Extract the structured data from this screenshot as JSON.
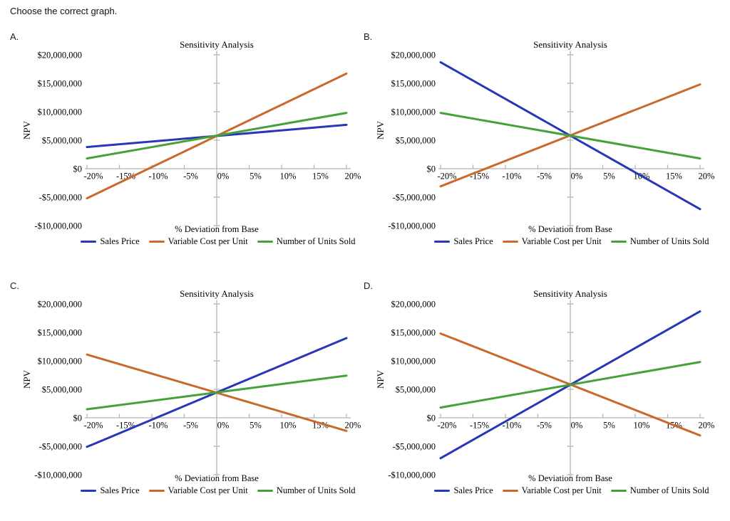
{
  "question": "Choose the correct graph.",
  "colors": {
    "axis": "#b3b3b3",
    "text": "#000000",
    "sales_price": "#2936b8",
    "variable_cost": "#c9692b",
    "units_sold": "#45a139"
  },
  "chart_data": [
    {
      "option": "A.",
      "type": "line",
      "title": "Sensitivity Analysis",
      "xlabel": "% Deviation from Base",
      "ylabel": "NPV",
      "xlim": [
        -20,
        20
      ],
      "ylim": [
        -10000000,
        20000000
      ],
      "grid": false,
      "legend_position": "bottom",
      "x_ticks": [
        -20,
        -15,
        -10,
        -5,
        0,
        5,
        10,
        15,
        20
      ],
      "x_tick_labels": [
        "-20%",
        "-15%",
        "-10%",
        "-5%",
        "0%",
        "5%",
        "10%",
        "15%",
        "20%"
      ],
      "y_ticks": [
        20000000,
        15000000,
        10000000,
        5000000,
        0,
        -5000000,
        -10000000
      ],
      "y_tick_labels": [
        "$20,000,000",
        "$15,000,000",
        "$10,000,000",
        "$5,000,000",
        "$0",
        "-$5,000,000",
        "-$10,000,000"
      ],
      "series": [
        {
          "name": "Sales Price",
          "color": "#2936b8",
          "points": [
            [
              -20,
              3800000
            ],
            [
              20,
              7700000
            ]
          ]
        },
        {
          "name": "Variable Cost per Unit",
          "color": "#c9692b",
          "points": [
            [
              -20,
              -5200000
            ],
            [
              20,
              16700000
            ]
          ]
        },
        {
          "name": "Number of Units Sold",
          "color": "#45a139",
          "points": [
            [
              -20,
              1800000
            ],
            [
              20,
              9800000
            ]
          ]
        }
      ]
    },
    {
      "option": "B.",
      "type": "line",
      "title": "Sensitivity Analysis",
      "xlabel": "% Deviation from Base",
      "ylabel": "NPV",
      "xlim": [
        -20,
        20
      ],
      "ylim": [
        -10000000,
        20000000
      ],
      "grid": false,
      "legend_position": "bottom",
      "x_ticks": [
        -20,
        -15,
        -10,
        -5,
        0,
        5,
        10,
        15,
        20
      ],
      "x_tick_labels": [
        "-20%",
        "-15%",
        "-10%",
        "-5%",
        "0%",
        "5%",
        "10%",
        "15%",
        "20%"
      ],
      "y_ticks": [
        20000000,
        15000000,
        10000000,
        5000000,
        0,
        -5000000,
        -10000000
      ],
      "y_tick_labels": [
        "$20,000,000",
        "$15,000,000",
        "$10,000,000",
        "$5,000,000",
        "$0",
        "-$5,000,000",
        "-$10,000,000"
      ],
      "series": [
        {
          "name": "Sales Price",
          "color": "#2936b8",
          "points": [
            [
              -20,
              18700000
            ],
            [
              20,
              -7100000
            ]
          ]
        },
        {
          "name": "Variable Cost per Unit",
          "color": "#c9692b",
          "points": [
            [
              -20,
              -3100000
            ],
            [
              20,
              14800000
            ]
          ]
        },
        {
          "name": "Number of Units Sold",
          "color": "#45a139",
          "points": [
            [
              -20,
              9800000
            ],
            [
              20,
              1800000
            ]
          ]
        }
      ]
    },
    {
      "option": "C.",
      "type": "line",
      "title": "Sensitivity Analysis",
      "xlabel": "% Deviation from Base",
      "ylabel": "NPV",
      "xlim": [
        -20,
        20
      ],
      "ylim": [
        -10000000,
        20000000
      ],
      "grid": false,
      "legend_position": "bottom",
      "x_ticks": [
        -20,
        -15,
        -10,
        -5,
        0,
        5,
        10,
        15,
        20
      ],
      "x_tick_labels": [
        "-20%",
        "-15%",
        "-10%",
        "-5%",
        "0%",
        "5%",
        "10%",
        "15%",
        "20%"
      ],
      "y_ticks": [
        20000000,
        15000000,
        10000000,
        5000000,
        0,
        -5000000,
        -10000000
      ],
      "y_tick_labels": [
        "$20,000,000",
        "$15,000,000",
        "$10,000,000",
        "$5,000,000",
        "$0",
        "-$5,000,000",
        "-$10,000,000"
      ],
      "series": [
        {
          "name": "Sales Price",
          "color": "#2936b8",
          "points": [
            [
              -20,
              -5100000
            ],
            [
              20,
              14000000
            ]
          ]
        },
        {
          "name": "Variable Cost per Unit",
          "color": "#c9692b",
          "points": [
            [
              -20,
              11100000
            ],
            [
              20,
              -2300000
            ]
          ]
        },
        {
          "name": "Number of Units Sold",
          "color": "#45a139",
          "points": [
            [
              -20,
              1500000
            ],
            [
              20,
              7400000
            ]
          ]
        }
      ]
    },
    {
      "option": "D.",
      "type": "line",
      "title": "Sensitivity Analysis",
      "xlabel": "% Deviation from Base",
      "ylabel": "NPV",
      "xlim": [
        -20,
        20
      ],
      "ylim": [
        -10000000,
        20000000
      ],
      "grid": false,
      "legend_position": "bottom",
      "x_ticks": [
        -20,
        -15,
        -10,
        -5,
        0,
        5,
        10,
        15,
        20
      ],
      "x_tick_labels": [
        "-20%",
        "-15%",
        "-10%",
        "-5%",
        "0%",
        "5%",
        "10%",
        "15%",
        "20%"
      ],
      "y_ticks": [
        20000000,
        15000000,
        10000000,
        5000000,
        0,
        -5000000,
        -10000000
      ],
      "y_tick_labels": [
        "$20,000,000",
        "$15,000,000",
        "$10,000,000",
        "$5,000,000",
        "$0",
        "-$5,000,000",
        "-$10,000,000"
      ],
      "series": [
        {
          "name": "Sales Price",
          "color": "#2936b8",
          "points": [
            [
              -20,
              -7100000
            ],
            [
              20,
              18700000
            ]
          ]
        },
        {
          "name": "Variable Cost per Unit",
          "color": "#c9692b",
          "points": [
            [
              -20,
              14800000
            ],
            [
              20,
              -3100000
            ]
          ]
        },
        {
          "name": "Number of Units Sold",
          "color": "#45a139",
          "points": [
            [
              -20,
              1800000
            ],
            [
              20,
              9800000
            ]
          ]
        }
      ]
    }
  ]
}
